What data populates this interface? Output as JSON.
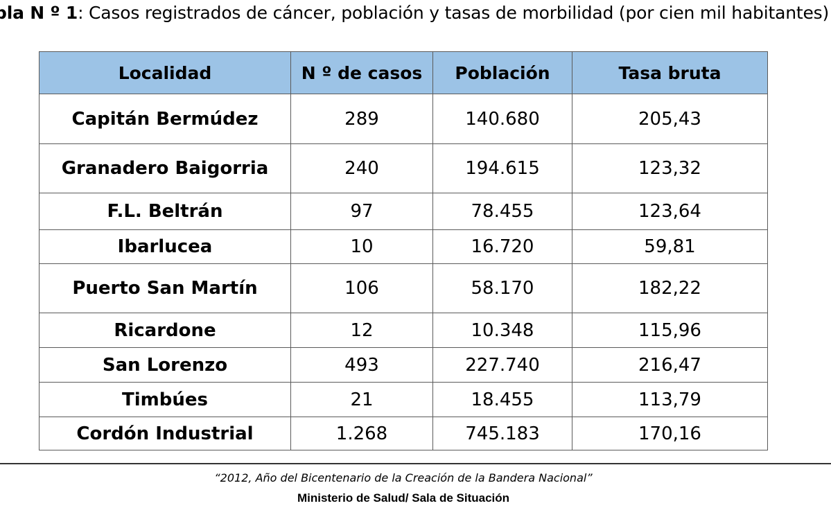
{
  "caption": {
    "label": "bla N º  1",
    "text": ": Casos registrados de cáncer, población y tasas de morbilidad (por cien mil habitantes)"
  },
  "table": {
    "header_bg": "#9cc3e6",
    "headers": [
      "Localidad",
      "N º de casos",
      "Población",
      "Tasa bruta"
    ],
    "rows": [
      {
        "localidad": "Capitán Bermúdez",
        "casos": "289",
        "poblacion": "140.680",
        "tasa": "205,43"
      },
      {
        "localidad": "Granadero Baigorria",
        "casos": "240",
        "poblacion": "194.615",
        "tasa": "123,32"
      },
      {
        "localidad": "F.L. Beltrán",
        "casos": "97",
        "poblacion": "78.455",
        "tasa": "123,64"
      },
      {
        "localidad": "Ibarlucea",
        "casos": "10",
        "poblacion": "16.720",
        "tasa": "59,81"
      },
      {
        "localidad": "Puerto San Martín",
        "casos": "106",
        "poblacion": "58.170",
        "tasa": "182,22"
      },
      {
        "localidad": "Ricardone",
        "casos": "12",
        "poblacion": "10.348",
        "tasa": "115,96"
      },
      {
        "localidad": "San Lorenzo",
        "casos": "493",
        "poblacion": "227.740",
        "tasa": "216,47"
      },
      {
        "localidad": "Timbúes",
        "casos": "21",
        "poblacion": "18.455",
        "tasa": "113,79"
      },
      {
        "localidad": "Cordón Industrial",
        "casos": "1.268",
        "poblacion": "745.183",
        "tasa": "170,16"
      }
    ]
  },
  "footer": {
    "motto": "“2012, Año del Bicentenario de la Creación de la Bandera Nacional”",
    "ministry": "Ministerio de Salud/  Sala de Situación"
  }
}
